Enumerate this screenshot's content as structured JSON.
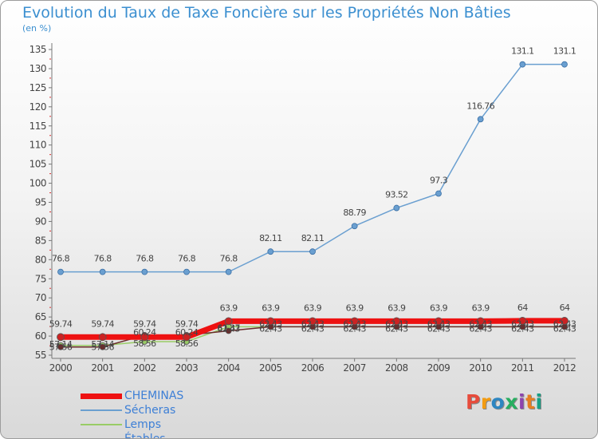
{
  "title": "Evolution du Taux de Taxe Foncière sur les Propriétés Non Bâties",
  "unit": "(en %)",
  "logo": {
    "text": "Proxiti",
    "colors": [
      "#e74c3c",
      "#f39c12",
      "#2e86c1",
      "#27ae60",
      "#8e44ad",
      "#e67e22",
      "#16a085"
    ]
  },
  "chart_data": {
    "type": "line",
    "title": "Evolution du Taux de Taxe Foncière sur les Propriétés Non Bâties",
    "ylabel": "(en %)",
    "xlabel": "",
    "x": [
      "2000",
      "2001",
      "2002",
      "2003",
      "2004",
      "2005",
      "2006",
      "2007",
      "2008",
      "2009",
      "2010",
      "2011",
      "2012"
    ],
    "ylim": [
      55,
      135
    ],
    "yticks": [
      55,
      60,
      65,
      70,
      75,
      80,
      85,
      90,
      95,
      100,
      105,
      110,
      115,
      120,
      125,
      130,
      135
    ],
    "grid": false,
    "legend_position": "bottom-left",
    "series": [
      {
        "name": "CHEMINAS",
        "color": "#ee1111",
        "width": 7,
        "values": [
          59.74,
          59.74,
          59.74,
          59.74,
          63.9,
          63.9,
          63.9,
          63.9,
          63.9,
          63.9,
          63.9,
          64,
          64
        ],
        "labels": [
          "59.74",
          "59.74",
          "59.74",
          "59.74",
          "63.9",
          "63.9",
          "63.9",
          "63.9",
          "63.9",
          "63.9",
          "63.9",
          "64",
          "64"
        ]
      },
      {
        "name": "Sécheras",
        "color": "#6a9fd0",
        "width": 1.5,
        "values": [
          76.8,
          76.8,
          76.8,
          76.8,
          76.8,
          82.11,
          82.11,
          88.79,
          93.52,
          97.3,
          116.76,
          131.1,
          131.1
        ],
        "labels": [
          "76.8",
          "76.8",
          "76.8",
          "76.8",
          "76.8",
          "82.11",
          "82.11",
          "88.79",
          "93.52",
          "97.3",
          "116.76",
          "131.1",
          "131.1"
        ]
      },
      {
        "name": "Lemps",
        "color": "#99cc66",
        "width": 1.5,
        "values": [
          57.56,
          57.56,
          58.56,
          58.56,
          62.43,
          62.43,
          62.43,
          62.43,
          62.43,
          62.43,
          62.43,
          62.43,
          62.43
        ],
        "labels": [
          "57.56",
          "57.56",
          "58.56",
          "58.56",
          "62.43",
          "62.43",
          "62.43",
          "62.43",
          "62.43",
          "62.43",
          "62.43",
          "62.43",
          "62.43"
        ]
      },
      {
        "name": "Étables",
        "color": "#6b2b2b",
        "width": 1.5,
        "values": [
          57.14,
          57.14,
          60.24,
          60.24,
          61.37,
          62.43,
          62.43,
          62.43,
          62.43,
          62.43,
          62.43,
          62.43,
          62.43
        ],
        "labels": [
          "57.14",
          "57.14",
          "60.24",
          "60.24",
          "61.37",
          "62.43",
          "62.43",
          "62.43",
          "62.43",
          "62.43",
          "62.43",
          "62.43",
          "62.43"
        ]
      }
    ]
  }
}
